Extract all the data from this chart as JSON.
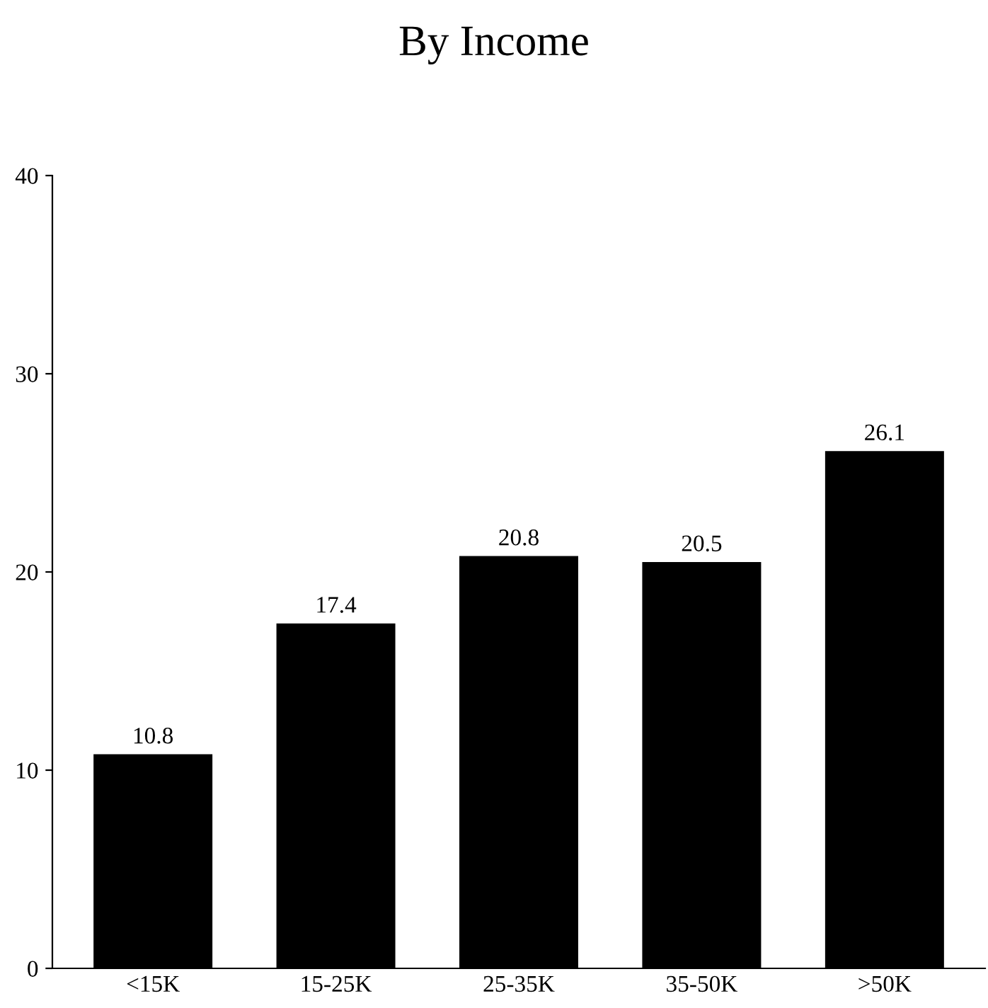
{
  "chart_data": {
    "type": "bar",
    "title": "By Income",
    "categories": [
      "<15K",
      "15-25K",
      "25-35K",
      "35-50K",
      ">50K"
    ],
    "values": [
      10.8,
      17.4,
      20.8,
      20.5,
      26.1
    ],
    "color": "#000000",
    "ylim": [
      0,
      40
    ],
    "yticks": [
      0,
      10,
      20,
      30,
      40
    ],
    "grid": false,
    "data_labels": true
  }
}
